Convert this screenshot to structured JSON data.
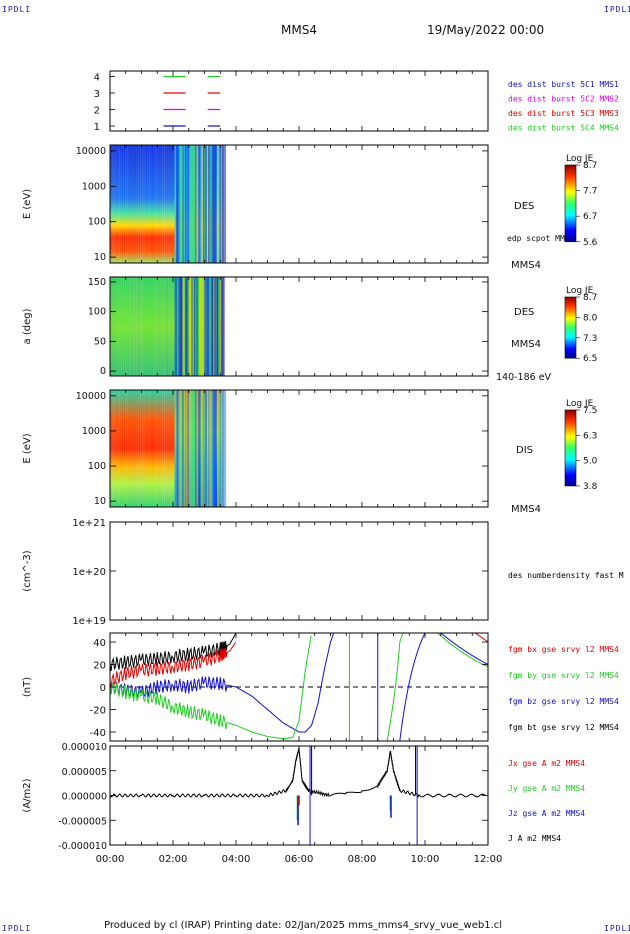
{
  "corner_label": "IPDLI",
  "header": {
    "spacecraft": "MMS4",
    "date": "19/May/2022 00:00"
  },
  "footer": "Produced by cl (IRAP)   Printing date: 02/Jan/2025   mms_mms4_srvy_vue_web1.cl",
  "x_ticks": [
    "00:00",
    "02:00",
    "04:00",
    "06:00",
    "08:00",
    "10:00",
    "12:00"
  ],
  "colors": {
    "red": "#e00000",
    "green": "#22cc22",
    "blue": "#1010d0",
    "magenta": "#e000e0",
    "black": "#000000"
  },
  "chart_data": [
    {
      "type": "line",
      "panel": "availability",
      "y_ticks": [
        "1",
        "2",
        "3",
        "4"
      ],
      "legend": [
        {
          "text": "des dist burst 5C1 MMS1",
          "color": "#1010d0"
        },
        {
          "text": "des dist burst 5C2 MMS2",
          "color": "#e000e0"
        },
        {
          "text": "des dist burst 5C3 MMS3",
          "color": "#e00000"
        },
        {
          "text": "des dist burst 5C4 MMS4",
          "color": "#22cc22"
        }
      ],
      "series": [
        {
          "level": 4,
          "color": "#22cc22",
          "segments": [
            [
              1.7,
              2.4
            ],
            [
              3.1,
              3.5
            ]
          ]
        },
        {
          "level": 3,
          "color": "#e00000",
          "segments": [
            [
              1.7,
              2.4
            ],
            [
              3.1,
              3.5
            ]
          ]
        },
        {
          "level": 2,
          "color": "#e000e0",
          "segments": [
            [
              1.7,
              2.4
            ],
            [
              3.1,
              3.5
            ]
          ]
        },
        {
          "level": 1,
          "color": "#1010d0",
          "segments": [
            [
              1.7,
              2.4
            ],
            [
              3.1,
              3.5
            ]
          ]
        }
      ],
      "xlim": [
        0,
        12
      ]
    },
    {
      "type": "heatmap",
      "panel": "des-energy",
      "ylabel": "E (eV)",
      "y_ticks": [
        "10000",
        "1000",
        "100",
        "10"
      ],
      "side_label": "DES",
      "side_note": "edp scpot MMS4",
      "side_craft": "MMS4",
      "colorbar": {
        "title": "Log JE",
        "ticks": [
          "8.7",
          "7.7",
          "6.7",
          "5.6"
        ]
      },
      "xlim": [
        0,
        3.6
      ]
    },
    {
      "type": "heatmap",
      "panel": "des-pitch",
      "ylabel": "a (deg)",
      "y_ticks": [
        "150",
        "100",
        "50",
        "0"
      ],
      "side_label": "DES",
      "side_craft": "MMS4",
      "side_range": "140-186 eV",
      "colorbar": {
        "title": "Log JE",
        "ticks": [
          "8.7",
          "8.0",
          "7.3",
          "6.5"
        ]
      },
      "xlim": [
        0,
        3.6
      ]
    },
    {
      "type": "heatmap",
      "panel": "dis-energy",
      "ylabel": "E (eV)",
      "y_ticks": [
        "10000",
        "1000",
        "100",
        "10"
      ],
      "side_label": "DIS",
      "side_craft": "MMS4",
      "colorbar": {
        "title": "Log JE",
        "ticks": [
          "7.5",
          "6.3",
          "5.0",
          "3.8"
        ]
      },
      "xlim": [
        0,
        3.6
      ]
    },
    {
      "type": "line",
      "panel": "density",
      "ylabel": "(cm^-3)",
      "y_ticks": [
        "1e+21",
        "1e+20",
        "1e+19"
      ],
      "legend": [
        {
          "text": "des numberdensity fast M",
          "color": "#000000"
        }
      ],
      "series": []
    },
    {
      "type": "line",
      "panel": "fgm",
      "ylabel": "(nT)",
      "y_ticks": [
        "40",
        "20",
        "0",
        "-20",
        "-40"
      ],
      "ylim": [
        -48,
        48
      ],
      "legend": [
        {
          "text": "fgm bx gse srvy l2 MMS4",
          "color": "#e00000"
        },
        {
          "text": "fgm by gse srvy l2 MMS4",
          "color": "#22cc22"
        },
        {
          "text": "fgm bz gse srvy l2 MMS4",
          "color": "#1010d0"
        },
        {
          "text": "fgm bt gse srvy l2 MMS4",
          "color": "#000000"
        }
      ],
      "series": [
        {
          "name": "fgm bt gse srvy l2 MMS4",
          "color": "#000000",
          "x": [
            0,
            0.5,
            1,
            1.5,
            2,
            2.5,
            3,
            3.5,
            3.8,
            4.0
          ],
          "y": [
            20,
            22,
            24,
            25,
            27,
            29,
            31,
            34,
            38,
            48
          ]
        },
        {
          "name": "fgm bx gse srvy l2 MMS4",
          "color": "#e00000",
          "x": [
            0,
            0.5,
            1,
            1.5,
            2,
            2.5,
            3,
            3.5,
            3.8,
            4.0
          ],
          "y": [
            5,
            12,
            15,
            16,
            18,
            20,
            23,
            28,
            32,
            40
          ]
        },
        {
          "name": "fgm bz gse srvy l2 MMS4",
          "color": "#1010d0",
          "x": [
            0,
            0.5,
            1,
            1.5,
            2,
            2.5,
            3,
            3.5,
            4,
            4.5,
            5,
            5.5,
            6,
            6.2,
            6.4,
            6.6,
            6.8,
            7.0,
            7.1
          ],
          "y": [
            0,
            -3,
            -5,
            0,
            2,
            0,
            4,
            3,
            0,
            -8,
            -20,
            -32,
            -40,
            -40,
            -34,
            -15,
            15,
            40,
            48
          ]
        },
        {
          "name": "fgm by gse srvy l2 MMS4",
          "color": "#22cc22",
          "x": [
            0,
            0.5,
            1,
            1.5,
            2,
            2.5,
            3,
            3.5,
            4,
            4.5,
            5,
            5.5,
            5.8,
            6.0,
            6.2,
            6.4
          ],
          "y": [
            0,
            -5,
            -8,
            -10,
            -18,
            -22,
            -25,
            -30,
            -34,
            -40,
            -44,
            -46,
            -45,
            -30,
            15,
            48
          ]
        }
      ],
      "xlim": [
        0,
        12
      ]
    },
    {
      "type": "line",
      "panel": "current",
      "ylabel": "(A/m2)",
      "y_ticks": [
        "0.000010",
        "0.000005",
        "0.000000",
        "-0.000005",
        "-0.000010"
      ],
      "ylim": [
        -1e-05,
        1e-05
      ],
      "legend": [
        {
          "text": "Jx gse A m2 MMS4",
          "color": "#e00000"
        },
        {
          "text": "Jy gse A m2 MMS4",
          "color": "#22cc22"
        },
        {
          "text": "Jz gse A m2 MMS4",
          "color": "#1010d0"
        },
        {
          "text": "J A m2 MMS4",
          "color": "#000000"
        }
      ],
      "series": [
        {
          "name": "J A m2 MMS4",
          "color": "#000000",
          "x": [
            0,
            1,
            2,
            3,
            4,
            5,
            5.6,
            5.8,
            5.9,
            6.0,
            6.1,
            6.3,
            7,
            7.5,
            8,
            8.5,
            8.8,
            8.9,
            9.0,
            9.2,
            9.8,
            12
          ],
          "y": [
            0,
            0,
            0,
            0,
            0,
            0,
            1e-06,
            3e-06,
            7e-06,
            9.5e-06,
            3e-06,
            1e-06,
            0,
            3e-07,
            1e-06,
            2e-06,
            5e-06,
            9e-06,
            5e-06,
            1e-06,
            0,
            0
          ]
        }
      ],
      "xlim": [
        0,
        12
      ]
    }
  ]
}
